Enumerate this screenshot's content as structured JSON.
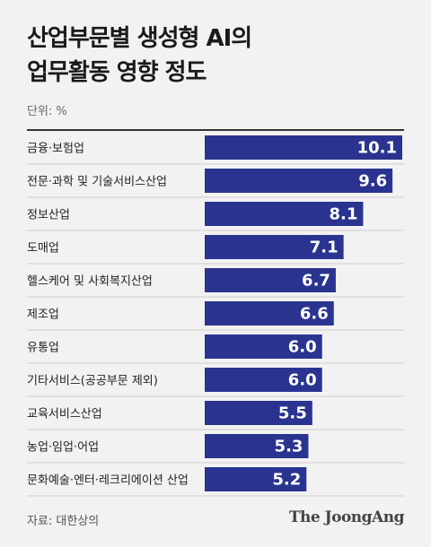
{
  "title_line1": "산업부문별 생성형 AI의",
  "title_line2": "업무활동 영향 정도",
  "unit": "단위: %",
  "source": "자료: 대한상의",
  "brand": "The JoongAng",
  "colors": {
    "bar": "#2a3490",
    "divider": "#cfcfcf",
    "background": "#f2f2f2"
  },
  "chart_data": {
    "type": "bar",
    "orientation": "horizontal",
    "categories": [
      "금융·보험업",
      "전문·과학 및 기술서비스산업",
      "정보산업",
      "도매업",
      "헬스케어 및 사회복지산업",
      "제조업",
      "유통업",
      "기타서비스(공공부문 제외)",
      "교육서비스산업",
      "농업·임업·어업",
      "문화예술·엔터·레크리에이션 산업"
    ],
    "values": [
      10.1,
      9.6,
      8.1,
      7.1,
      6.7,
      6.6,
      6.0,
      6.0,
      5.5,
      5.3,
      5.2
    ],
    "value_labels": [
      "10.1",
      "9.6",
      "8.1",
      "7.1",
      "6.7",
      "6.6",
      "6.0",
      "6.0",
      "5.5",
      "5.3",
      "5.2"
    ],
    "title": "산업부문별 생성형 AI의 업무활동 영향 정도",
    "xlabel": "",
    "ylabel": "",
    "xlim": [
      0,
      10.1
    ]
  }
}
